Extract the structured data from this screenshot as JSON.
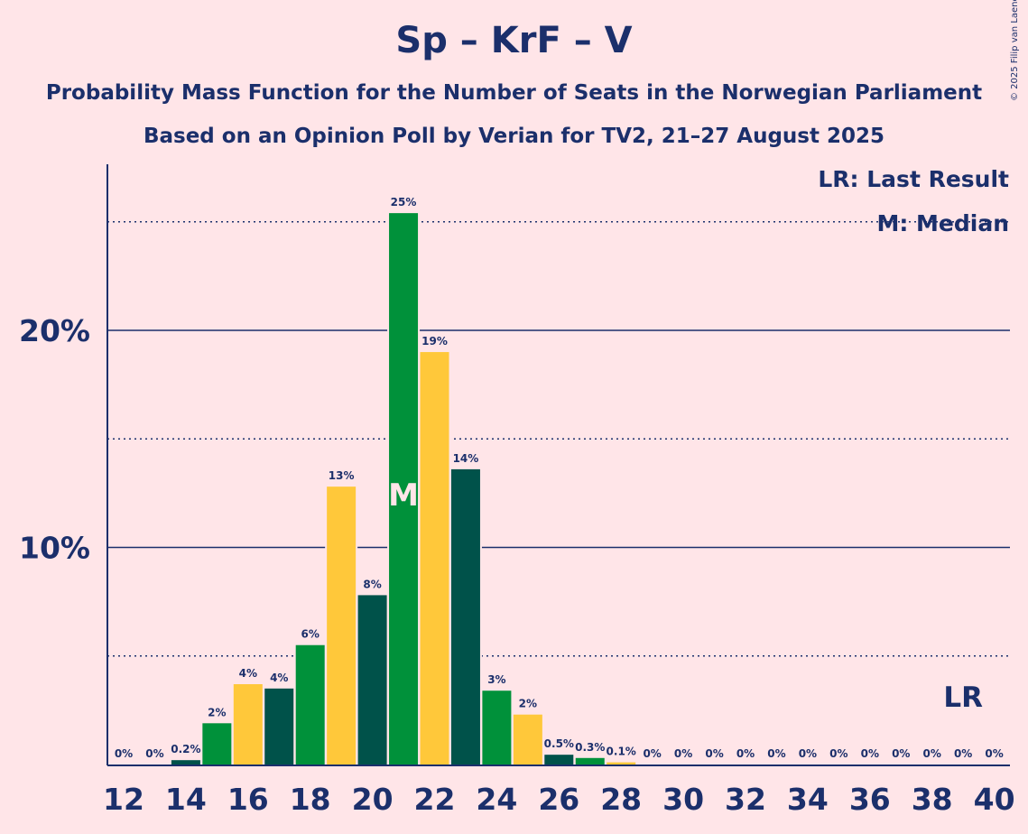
{
  "title": "Sp – KrF – V",
  "subtitle1": "Probability Mass Function for the Number of Seats in the Norwegian Parliament",
  "subtitle2": "Based on an Opinion Poll by Verian for TV2, 21–27 August 2025",
  "copyright": "© 2025 Filip van Laenen",
  "legend": {
    "lr": "LR: Last Result",
    "m": "M: Median"
  },
  "markers": {
    "median_label": "M",
    "lr_label": "LR",
    "median_seat": 21,
    "last_result_seat": 39
  },
  "colors": {
    "background": "#FFE5E8",
    "text": "#1B2F6B",
    "bar_colors": [
      "#00913A",
      "#FFC83A",
      "#00524A"
    ]
  },
  "chart_data": {
    "type": "bar",
    "x": [
      12,
      13,
      14,
      15,
      16,
      17,
      18,
      19,
      20,
      21,
      22,
      23,
      24,
      25,
      26,
      27,
      28,
      29,
      30,
      31,
      32,
      33,
      34,
      35,
      36,
      37,
      38,
      39,
      40
    ],
    "values": [
      0,
      0,
      0.2,
      1.9,
      3.7,
      3.5,
      5.5,
      12.8,
      7.8,
      25.4,
      19.0,
      13.6,
      3.4,
      2.3,
      0.45,
      0.3,
      0.1,
      0,
      0,
      0,
      0,
      0,
      0,
      0,
      0,
      0,
      0,
      0,
      0
    ],
    "labels": [
      "0%",
      "0%",
      "0.2%",
      "2%",
      "4%",
      "4%",
      "6%",
      "13%",
      "8%",
      "25%",
      "19%",
      "14%",
      "3%",
      "2%",
      "0.5%",
      "0.3%",
      "0.1%",
      "0%",
      "0%",
      "0%",
      "0%",
      "0%",
      "0%",
      "0%",
      "0%",
      "0%",
      "0%",
      "0%",
      "0%"
    ],
    "x_tick_labels": [
      "12",
      "14",
      "16",
      "18",
      "20",
      "22",
      "24",
      "26",
      "28",
      "30",
      "32",
      "34",
      "36",
      "38",
      "40"
    ],
    "y_tick_labels": [
      {
        "value": 10,
        "label": "10%"
      },
      {
        "value": 20,
        "label": "20%"
      }
    ],
    "minor_gridlines": [
      5,
      15,
      25
    ],
    "ylim": [
      0,
      27.7
    ],
    "xlabel": "",
    "ylabel": ""
  }
}
